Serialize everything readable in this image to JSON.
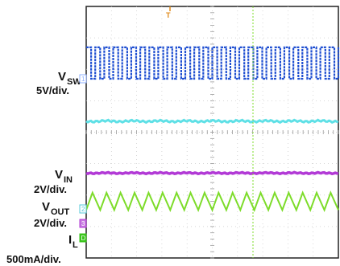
{
  "chart_data": {
    "type": "line",
    "instrument": "oscilloscope",
    "grid": true,
    "divisions": {
      "x": 10,
      "y": 8
    },
    "channels": [
      {
        "id": "1",
        "label_main": "V",
        "label_sub": "SW",
        "scale": "5V/div.",
        "color": "#1f4fd1",
        "marker": "1",
        "marker_color": "#8fb0ff",
        "waveform": "square",
        "cycles": 28,
        "amplitude_div": 1.0
      },
      {
        "id": "4",
        "label_main": "",
        "label_sub": "",
        "scale": "",
        "color": "#5fe0e6",
        "waveform": "flat-noisy",
        "amplitude_div": 0.05
      },
      {
        "id": "3",
        "label_main": "V",
        "label_sub": "IN",
        "scale": "2V/div.",
        "color": "#b23ad6",
        "marker": "3",
        "marker_color": "#c77be0",
        "waveform": "flat",
        "amplitude_div": 0.03
      },
      {
        "id": "2",
        "label_main": "V",
        "label_sub": "OUT",
        "scale": "2V/div.",
        "color": "#7ddc2a",
        "marker": "2",
        "marker_color": "#55c8d8",
        "waveform": "triangle",
        "cycles": 18,
        "amplitude_div": 0.55
      },
      {
        "id": "IL",
        "label_main": "I",
        "label_sub": "L",
        "scale": "500mA/div.",
        "color": "#39c41a",
        "marker": "D",
        "marker_color": "#39c41a",
        "waveform": "none"
      }
    ],
    "trigger": {
      "marker": "T",
      "color": "#e08a1a"
    }
  }
}
